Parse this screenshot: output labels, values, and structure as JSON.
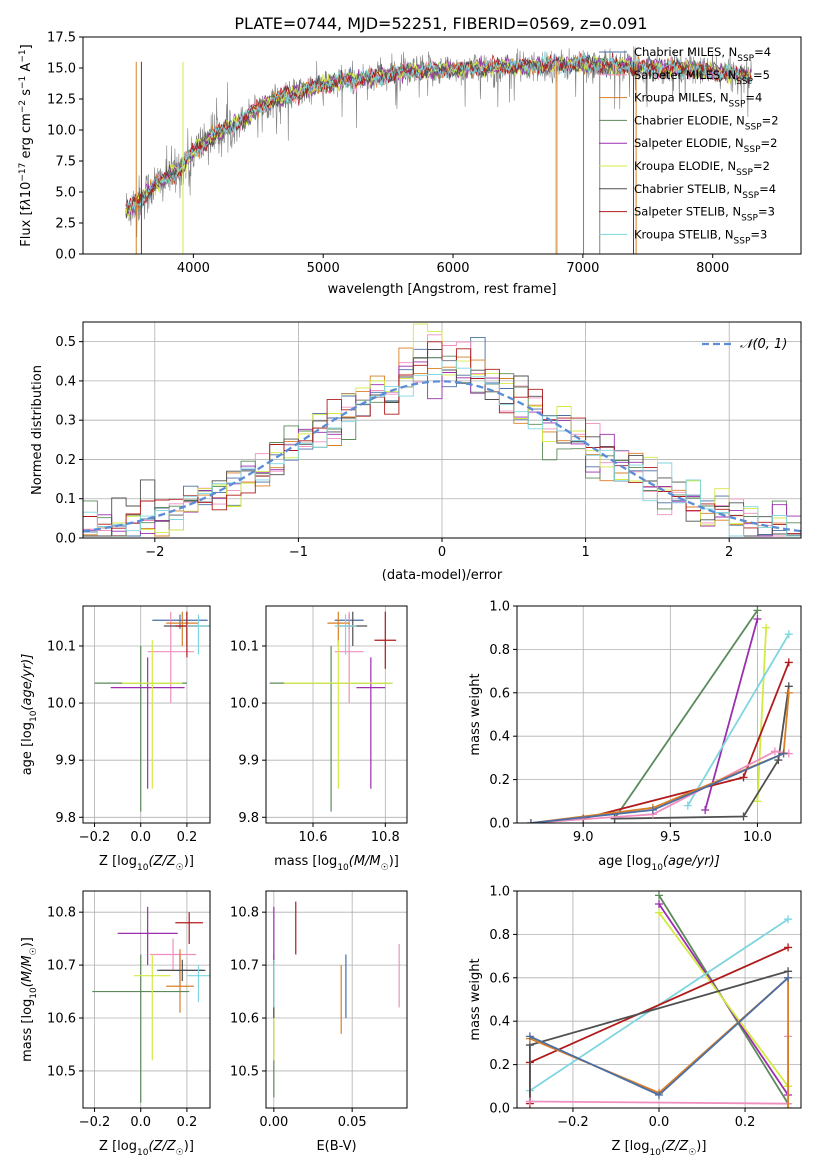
{
  "figure": {
    "title": "PLATE=0744, MJD=52251, FIBERID=0569, z=0.091"
  },
  "colors": {
    "chabrier_miles": "#4a6fa5",
    "salpeter_miles": "#f08fbf",
    "kroupa_miles": "#d97f26",
    "chabrier_elodie": "#5b8a5b",
    "salpeter_elodie": "#9b2fae",
    "kroupa_elodie": "#d4ea44",
    "chabrier_stelib": "#505050",
    "salpeter_stelib": "#b01b1b",
    "kroupa_stelib": "#7fd6e0",
    "data": "#808080",
    "normal": "#5b8dd6"
  },
  "chart_data": [
    {
      "id": "spectrum",
      "type": "line",
      "xlabel": "wavelength [Angstrom, rest frame]",
      "ylabel_parts": [
        "Flux [f",
        "λ",
        "10",
        "−17",
        " erg cm",
        "−2",
        " s",
        "−1",
        " A",
        "−1",
        "]"
      ],
      "xlim": [
        3150,
        8680
      ],
      "ylim": [
        0,
        17.5
      ],
      "xticks": [
        4000,
        5000,
        6000,
        7000,
        8000
      ],
      "yticks": [
        0.0,
        2.5,
        5.0,
        7.5,
        10.0,
        12.5,
        15.0,
        17.5
      ],
      "ytick_labels": [
        "0.0",
        "2.5",
        "5.0",
        "7.5",
        "10.0",
        "12.5",
        "15.0",
        "17.5"
      ],
      "legend": [
        {
          "label": "Chabrier MILES, N",
          "sub": "SSP",
          "tail": "=4",
          "color_key": "chabrier_miles"
        },
        {
          "label": "Salpeter MILES, N",
          "sub": "SSP",
          "tail": "=5",
          "color_key": "salpeter_miles"
        },
        {
          "label": "Kroupa MILES, N",
          "sub": "SSP",
          "tail": "=4",
          "color_key": "kroupa_miles"
        },
        {
          "label": "Chabrier ELODIE, N",
          "sub": "SSP",
          "tail": "=2",
          "color_key": "chabrier_elodie"
        },
        {
          "label": "Salpeter ELODIE, N",
          "sub": "SSP",
          "tail": "=2",
          "color_key": "salpeter_elodie"
        },
        {
          "label": "Kroupa ELODIE, N",
          "sub": "SSP",
          "tail": "=2",
          "color_key": "kroupa_elodie"
        },
        {
          "label": "Chabrier STELIB, N",
          "sub": "SSP",
          "tail": "=4",
          "color_key": "chabrier_stelib"
        },
        {
          "label": "Salpeter STELIB, N",
          "sub": "SSP",
          "tail": "=3",
          "color_key": "salpeter_stelib"
        },
        {
          "label": "Kroupa STELIB, N",
          "sub": "SSP",
          "tail": "=3",
          "color_key": "kroupa_stelib"
        }
      ],
      "legend_placement": "top-right",
      "continuum": {
        "x": [
          3480,
          3600,
          3700,
          3800,
          3900,
          4000,
          4100,
          4200,
          4300,
          4400,
          4500,
          4600,
          4700,
          4800,
          4900,
          5000,
          5200,
          5400,
          5600,
          5800,
          6000,
          6200,
          6400,
          6600,
          6800,
          7000,
          7200,
          7400,
          7600,
          7800,
          8000,
          8200,
          8300
        ],
        "y": [
          3.5,
          4.5,
          5.5,
          6.2,
          6.9,
          8.2,
          9.2,
          9.8,
          10.3,
          11.0,
          11.8,
          12.3,
          12.7,
          13.0,
          13.3,
          13.7,
          14.0,
          14.3,
          14.6,
          14.8,
          14.9,
          15.0,
          15.1,
          15.1,
          15.2,
          15.3,
          15.2,
          15.1,
          15.0,
          14.9,
          14.7,
          14.5,
          14.3
        ]
      },
      "vlines": [
        {
          "x": 3560,
          "color_key": "kroupa_miles"
        },
        {
          "x": 3600,
          "color_key": "salpeter_stelib"
        },
        {
          "x": 3920,
          "color_key": "kroupa_elodie"
        },
        {
          "x": 6790,
          "color_key": "kroupa_elodie"
        },
        {
          "x": 6800,
          "color_key": "kroupa_miles"
        },
        {
          "x": 7005,
          "color_key": "data"
        },
        {
          "x": 7130,
          "color_key": "data"
        },
        {
          "x": 7390,
          "color_key": "salpeter_stelib"
        },
        {
          "x": 7410,
          "color_key": "kroupa_miles"
        }
      ]
    },
    {
      "id": "residuals",
      "type": "step",
      "xlabel": "(data-model)/error",
      "ylabel": "Normed distribution",
      "xlim": [
        -2.5,
        2.5
      ],
      "ylim": [
        0,
        0.55
      ],
      "xticks": [
        -2,
        -1,
        0,
        1,
        2
      ],
      "xtick_labels": [
        "−2",
        "−1",
        "0",
        "1",
        "2"
      ],
      "yticks": [
        0.0,
        0.1,
        0.2,
        0.3,
        0.4,
        0.5
      ],
      "ytick_labels": [
        "0.0",
        "0.1",
        "0.2",
        "0.3",
        "0.4",
        "0.5"
      ],
      "bin_width": 0.1,
      "legend": [
        {
          "label": "𝒩(0, 1)",
          "color_key": "normal"
        }
      ],
      "legend_placement": "top-right"
    },
    {
      "id": "age_vs_Z",
      "type": "errorbar",
      "xlabel": "Z [log10(Z/Z☉)]",
      "xlabel_parts": [
        "Z [log",
        "10",
        "(Z/Z",
        "☉",
        ")]"
      ],
      "ylabel_parts": [
        "age  [log",
        "10",
        "(age/yr)]"
      ],
      "xlim": [
        -0.25,
        0.3
      ],
      "ylim": [
        9.79,
        10.17
      ],
      "xticks": [
        -0.2,
        0.0,
        0.2
      ],
      "xtick_labels": [
        "−0.2",
        "0.0",
        "0.2"
      ],
      "yticks": [
        9.8,
        9.9,
        10.0,
        10.1
      ],
      "ytick_labels": [
        "9.8",
        "9.9",
        "10.0",
        "10.1"
      ],
      "points": [
        {
          "x": 0.17,
          "y": 10.145,
          "xerr": 0.12,
          "ylo": 10.13,
          "yhi": 10.155,
          "color_key": "chabrier_miles"
        },
        {
          "x": 0.13,
          "y": 10.09,
          "xerr": 0.1,
          "ylo": 10.0,
          "yhi": 10.16,
          "color_key": "salpeter_miles"
        },
        {
          "x": 0.18,
          "y": 10.14,
          "xerr": 0.07,
          "ylo": 10.1,
          "yhi": 10.16,
          "color_key": "kroupa_miles"
        },
        {
          "x": 0.0,
          "y": 10.035,
          "xerr": 0.2,
          "ylo": 9.81,
          "yhi": 10.1,
          "color_key": "chabrier_elodie"
        },
        {
          "x": 0.03,
          "y": 10.027,
          "xerr": 0.16,
          "ylo": 9.85,
          "yhi": 10.08,
          "color_key": "salpeter_elodie"
        },
        {
          "x": 0.05,
          "y": 10.035,
          "xerr": 0.13,
          "ylo": 9.85,
          "yhi": 10.11,
          "color_key": "kroupa_elodie"
        },
        {
          "x": 0.2,
          "y": 10.135,
          "xerr": 0.1,
          "ylo": 10.1,
          "yhi": 10.16,
          "color_key": "chabrier_stelib"
        },
        {
          "x": 0.2,
          "y": 10.135,
          "xerr": 0.05,
          "ylo": 10.08,
          "yhi": 10.16,
          "color_key": "salpeter_stelib"
        },
        {
          "x": 0.25,
          "y": 10.135,
          "xerr": 0.05,
          "ylo": 10.085,
          "yhi": 10.155,
          "color_key": "kroupa_stelib"
        }
      ]
    },
    {
      "id": "age_vs_mass",
      "type": "errorbar",
      "xlabel_parts": [
        "mass [log",
        "10",
        "(M/M",
        "☉",
        ")]"
      ],
      "xlim": [
        10.47,
        10.86
      ],
      "ylim": [
        9.79,
        10.17
      ],
      "xticks": [
        10.6,
        10.8
      ],
      "xtick_labels": [
        "10.6",
        "10.8"
      ],
      "yticks": [
        9.8,
        9.9,
        10.0,
        10.1
      ],
      "ytick_labels": [
        "9.8",
        "9.9",
        "10.0",
        "10.1"
      ],
      "points": [
        {
          "x": 10.7,
          "y": 10.145,
          "xerr": 0.04,
          "ylo": 10.13,
          "yhi": 10.155,
          "color_key": "chabrier_miles"
        },
        {
          "x": 10.7,
          "y": 10.09,
          "xerr": 0.04,
          "ylo": 10.0,
          "yhi": 10.16,
          "color_key": "salpeter_miles"
        },
        {
          "x": 10.67,
          "y": 10.14,
          "xerr": 0.03,
          "ylo": 10.1,
          "yhi": 10.16,
          "color_key": "kroupa_miles"
        },
        {
          "x": 10.65,
          "y": 10.035,
          "xerr": 0.17,
          "ylo": 9.81,
          "yhi": 10.1,
          "color_key": "chabrier_elodie"
        },
        {
          "x": 10.76,
          "y": 10.027,
          "xerr": 0.04,
          "ylo": 9.85,
          "yhi": 10.08,
          "color_key": "salpeter_elodie"
        },
        {
          "x": 10.67,
          "y": 10.035,
          "xerr": 0.15,
          "ylo": 9.85,
          "yhi": 10.11,
          "color_key": "kroupa_elodie"
        },
        {
          "x": 10.71,
          "y": 10.135,
          "xerr": 0.04,
          "ylo": 10.1,
          "yhi": 10.16,
          "color_key": "chabrier_stelib"
        },
        {
          "x": 10.8,
          "y": 10.11,
          "xerr": 0.03,
          "ylo": 10.06,
          "yhi": 10.16,
          "color_key": "salpeter_stelib"
        },
        {
          "x": 10.69,
          "y": 10.135,
          "xerr": 0.03,
          "ylo": 10.085,
          "yhi": 10.155,
          "color_key": "kroupa_stelib"
        }
      ]
    },
    {
      "id": "mass_weight_vs_age",
      "type": "line",
      "xlabel_parts": [
        "age  [log",
        "10",
        "(age/yr)]"
      ],
      "ylabel": "mass weight",
      "xlim": [
        8.62,
        10.25
      ],
      "ylim": [
        0,
        1.0
      ],
      "xticks": [
        9.0,
        9.5,
        10.0
      ],
      "xtick_labels": [
        "9.0",
        "9.5",
        "10.0"
      ],
      "yticks": [
        0.0,
        0.2,
        0.4,
        0.6,
        0.8,
        1.0
      ],
      "ytick_labels": [
        "0.0",
        "0.2",
        "0.4",
        "0.6",
        "0.8",
        "1.0"
      ],
      "series": [
        {
          "color_key": "chabrier_elodie",
          "x": [
            9.18,
            10.0
          ],
          "y": [
            0.02,
            0.98
          ]
        },
        {
          "color_key": "salpeter_elodie",
          "x": [
            9.7,
            10.0
          ],
          "y": [
            0.06,
            0.94
          ]
        },
        {
          "color_key": "kroupa_elodie",
          "x": [
            10.0,
            10.05
          ],
          "y": [
            0.1,
            0.9
          ]
        },
        {
          "color_key": "kroupa_stelib",
          "x": [
            9.6,
            10.18
          ],
          "y": [
            0.08,
            0.87
          ]
        },
        {
          "color_key": "salpeter_stelib",
          "x": [
            9.0,
            9.92,
            10.18
          ],
          "y": [
            0.02,
            0.21,
            0.74
          ]
        },
        {
          "color_key": "chabrier_stelib",
          "x": [
            9.18,
            9.92,
            10.12,
            10.18
          ],
          "y": [
            0.02,
            0.03,
            0.29,
            0.63
          ]
        },
        {
          "color_key": "salpeter_miles",
          "x": [
            8.7,
            9.4,
            10.1,
            10.18
          ],
          "y": [
            0.0,
            0.04,
            0.33,
            0.32
          ]
        },
        {
          "color_key": "kroupa_miles",
          "x": [
            8.7,
            9.4,
            10.15,
            10.18
          ],
          "y": [
            0.0,
            0.07,
            0.32,
            0.6
          ]
        },
        {
          "color_key": "chabrier_miles",
          "x": [
            8.7,
            9.4,
            10.15
          ],
          "y": [
            0.0,
            0.06,
            0.32
          ]
        }
      ]
    },
    {
      "id": "mass_vs_Z",
      "type": "errorbar",
      "xlabel_parts": [
        "Z [log",
        "10",
        "(Z/Z",
        "☉",
        ")]"
      ],
      "ylabel_parts": [
        "mass [log",
        "10",
        "(M/M",
        "☉",
        ")]"
      ],
      "xlim": [
        -0.25,
        0.3
      ],
      "ylim": [
        10.43,
        10.84
      ],
      "xticks": [
        -0.2,
        0.0,
        0.2
      ],
      "xtick_labels": [
        "−0.2",
        "0.0",
        "0.2"
      ],
      "yticks": [
        10.5,
        10.6,
        10.7,
        10.8
      ],
      "ytick_labels": [
        "10.5",
        "10.6",
        "10.7",
        "10.8"
      ],
      "points": [
        {
          "x": 0.17,
          "y": 10.69,
          "xerr": 0.1,
          "ylo": 10.66,
          "yhi": 10.72,
          "color_key": "chabrier_miles"
        },
        {
          "x": 0.14,
          "y": 10.72,
          "xerr": 0.1,
          "ylo": 10.69,
          "yhi": 10.75,
          "color_key": "salpeter_miles"
        },
        {
          "x": 0.17,
          "y": 10.66,
          "xerr": 0.06,
          "ylo": 10.61,
          "yhi": 10.73,
          "color_key": "kroupa_miles"
        },
        {
          "x": 0.0,
          "y": 10.65,
          "xerr": 0.21,
          "ylo": 10.44,
          "yhi": 10.72,
          "color_key": "chabrier_elodie"
        },
        {
          "x": 0.03,
          "y": 10.76,
          "xerr": 0.13,
          "ylo": 10.7,
          "yhi": 10.81,
          "color_key": "salpeter_elodie"
        },
        {
          "x": 0.05,
          "y": 10.68,
          "xerr": 0.08,
          "ylo": 10.52,
          "yhi": 10.72,
          "color_key": "kroupa_elodie"
        },
        {
          "x": 0.18,
          "y": 10.69,
          "xerr": 0.1,
          "ylo": 10.67,
          "yhi": 10.71,
          "color_key": "chabrier_stelib"
        },
        {
          "x": 0.21,
          "y": 10.78,
          "xerr": 0.06,
          "ylo": 10.74,
          "yhi": 10.8,
          "color_key": "salpeter_stelib"
        },
        {
          "x": 0.25,
          "y": 10.68,
          "xerr": 0.05,
          "ylo": 10.63,
          "yhi": 10.7,
          "color_key": "kroupa_stelib"
        }
      ]
    },
    {
      "id": "mass_vs_EBV",
      "type": "errorbar",
      "xlabel": "E(B-V)",
      "xlim": [
        -0.005,
        0.085
      ],
      "ylim": [
        10.43,
        10.84
      ],
      "xticks": [
        0.0,
        0.05
      ],
      "xtick_labels": [
        "0.00",
        "0.05"
      ],
      "yticks": [
        10.5,
        10.6,
        10.7,
        10.8
      ],
      "ytick_labels": [
        "10.5",
        "10.6",
        "10.7",
        "10.8"
      ],
      "points": [
        {
          "x": 0.046,
          "y": 10.67,
          "ylo": 10.6,
          "yhi": 10.72,
          "color_key": "chabrier_miles"
        },
        {
          "x": 0.08,
          "y": 10.68,
          "ylo": 10.62,
          "yhi": 10.74,
          "color_key": "salpeter_miles"
        },
        {
          "x": 0.043,
          "y": 10.64,
          "ylo": 10.57,
          "yhi": 10.7,
          "color_key": "kroupa_miles"
        },
        {
          "x": 0.0,
          "y": 10.6,
          "ylo": 10.45,
          "yhi": 10.72,
          "color_key": "chabrier_elodie"
        },
        {
          "x": 0.0,
          "y": 10.75,
          "ylo": 10.7,
          "yhi": 10.81,
          "color_key": "salpeter_elodie"
        },
        {
          "x": 0.0,
          "y": 10.6,
          "ylo": 10.52,
          "yhi": 10.7,
          "color_key": "kroupa_elodie"
        },
        {
          "x": 0.0,
          "y": 10.66,
          "ylo": 10.6,
          "yhi": 10.71,
          "color_key": "chabrier_stelib"
        },
        {
          "x": 0.014,
          "y": 10.77,
          "ylo": 10.72,
          "yhi": 10.82,
          "color_key": "salpeter_stelib"
        },
        {
          "x": 0.0,
          "y": 10.67,
          "ylo": 10.62,
          "yhi": 10.71,
          "color_key": "kroupa_stelib"
        }
      ]
    },
    {
      "id": "mass_weight_vs_Z",
      "type": "line",
      "xlabel_parts": [
        "Z [log",
        "10",
        "(Z/Z",
        "☉",
        ")]"
      ],
      "ylabel": "mass weight",
      "xlim": [
        -0.33,
        0.33
      ],
      "ylim": [
        0,
        1.0
      ],
      "xticks": [
        -0.2,
        0.0,
        0.2
      ],
      "xtick_labels": [
        "−0.2",
        "0.0",
        "0.2"
      ],
      "yticks": [
        0.0,
        0.2,
        0.4,
        0.6,
        0.8,
        1.0
      ],
      "ytick_labels": [
        "0.0",
        "0.2",
        "0.4",
        "0.6",
        "0.8",
        "1.0"
      ],
      "series": [
        {
          "color_key": "chabrier_elodie",
          "x": [
            0.0,
            0.3
          ],
          "y": [
            0.98,
            0.02
          ]
        },
        {
          "color_key": "salpeter_elodie",
          "x": [
            0.0,
            0.3
          ],
          "y": [
            0.94,
            0.06
          ]
        },
        {
          "color_key": "kroupa_elodie",
          "x": [
            0.0,
            0.3
          ],
          "y": [
            0.9,
            0.1
          ]
        },
        {
          "color_key": "kroupa_stelib",
          "x": [
            -0.3,
            0.3
          ],
          "y": [
            0.08,
            0.87
          ]
        },
        {
          "color_key": "salpeter_stelib",
          "x": [
            -0.3,
            -0.3,
            0.3
          ],
          "y": [
            0.02,
            0.21,
            0.74
          ]
        },
        {
          "color_key": "chabrier_stelib",
          "x": [
            -0.3,
            -0.3,
            0.3
          ],
          "y": [
            0.03,
            0.29,
            0.63
          ]
        },
        {
          "color_key": "salpeter_miles",
          "x": [
            -0.3,
            0.3,
            0.3
          ],
          "y": [
            0.03,
            0.02,
            0.33
          ]
        },
        {
          "color_key": "kroupa_miles",
          "x": [
            -0.3,
            0.0,
            0.3,
            0.3
          ],
          "y": [
            0.32,
            0.07,
            0.6,
            0.0
          ]
        },
        {
          "color_key": "chabrier_miles",
          "x": [
            -0.3,
            0.0,
            0.3
          ],
          "y": [
            0.33,
            0.06,
            0.6
          ]
        }
      ]
    }
  ]
}
